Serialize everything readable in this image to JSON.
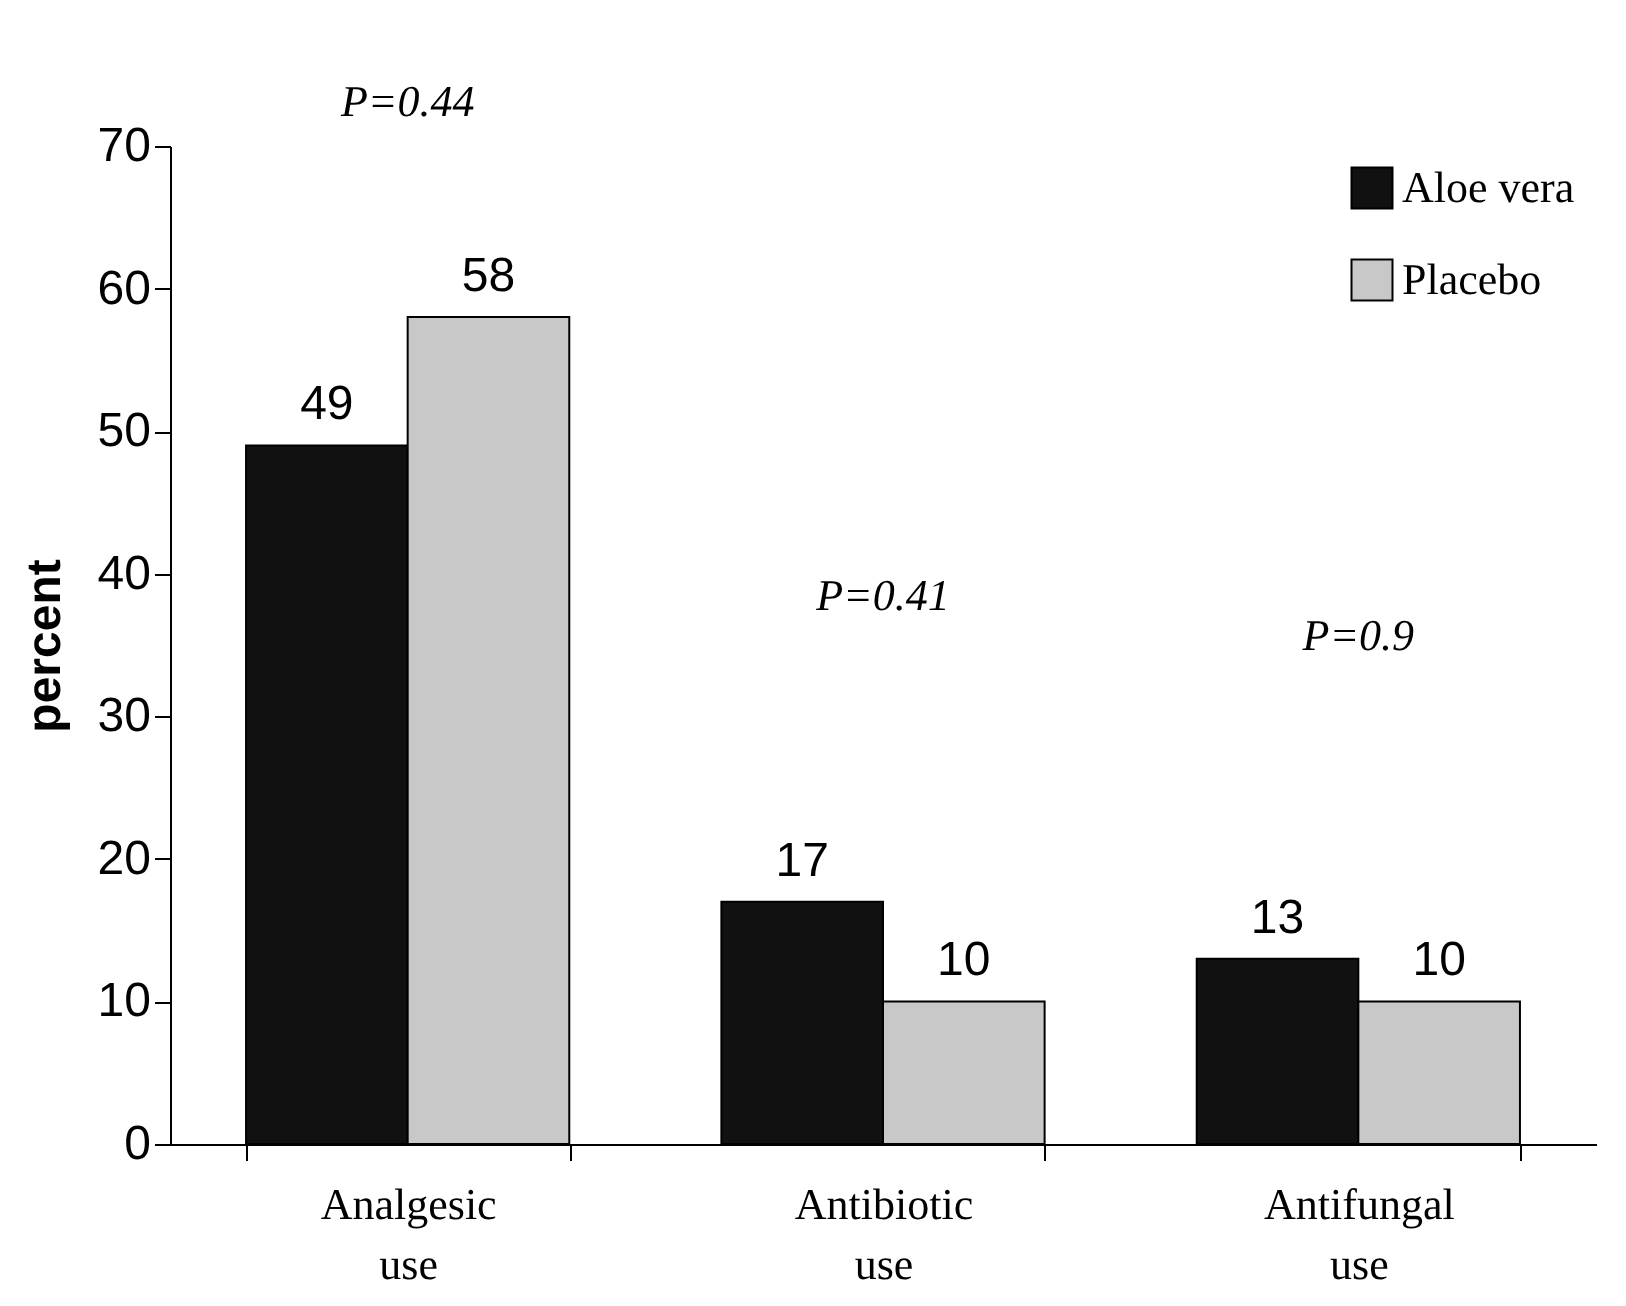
{
  "chart_data": {
    "type": "bar",
    "ylabel": "percent",
    "categories": [
      "Analgesic use",
      "Antibiotic use",
      "Antifungal use"
    ],
    "series": [
      {
        "name": "Aloe vera",
        "color": "#111111",
        "values": [
          49,
          17,
          13
        ]
      },
      {
        "name": "Placebo",
        "color": "#c8c8c8",
        "values": [
          58,
          10,
          10
        ]
      }
    ],
    "ylim": [
      0,
      70
    ],
    "yticks": [
      0,
      10,
      20,
      30,
      40,
      50,
      60,
      70
    ],
    "grid": false,
    "legend": "top right",
    "data_labels": true,
    "annotations": [
      "P=0.44",
      "P=0.41",
      "P=0.9"
    ]
  }
}
